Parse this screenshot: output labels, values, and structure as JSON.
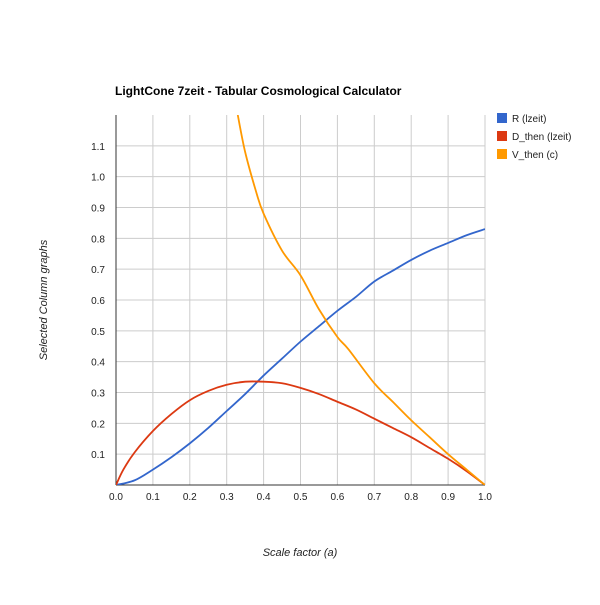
{
  "chart_data": {
    "type": "line",
    "title": "LightCone 7zeit - Tabular Cosmological Calculator",
    "xlabel": "Scale factor (a)",
    "ylabel": "Selected Column graphs",
    "xlim": [
      0.0,
      1.0
    ],
    "ylim": [
      0.0,
      1.2
    ],
    "x_ticks": [
      "0.0",
      "0.1",
      "0.2",
      "0.3",
      "0.4",
      "0.5",
      "0.6",
      "0.7",
      "0.8",
      "0.9",
      "1.0"
    ],
    "y_ticks": [
      "0.1",
      "0.2",
      "0.3",
      "0.4",
      "0.5",
      "0.6",
      "0.7",
      "0.8",
      "0.9",
      "1.0",
      "1.1"
    ],
    "grid": true,
    "legend_position": "right",
    "series": [
      {
        "name": "R (lzeit)",
        "color": "#3366cc",
        "points": [
          [
            0.0,
            0.0
          ],
          [
            0.05,
            0.015
          ],
          [
            0.1,
            0.05
          ],
          [
            0.15,
            0.09
          ],
          [
            0.2,
            0.135
          ],
          [
            0.25,
            0.185
          ],
          [
            0.3,
            0.24
          ],
          [
            0.35,
            0.295
          ],
          [
            0.4,
            0.355
          ],
          [
            0.45,
            0.41
          ],
          [
            0.5,
            0.465
          ],
          [
            0.55,
            0.515
          ],
          [
            0.6,
            0.565
          ],
          [
            0.65,
            0.61
          ],
          [
            0.7,
            0.66
          ],
          [
            0.75,
            0.695
          ],
          [
            0.8,
            0.73
          ],
          [
            0.85,
            0.76
          ],
          [
            0.9,
            0.785
          ],
          [
            0.95,
            0.81
          ],
          [
            1.0,
            0.83
          ]
        ]
      },
      {
        "name": "D_then (lzeit)",
        "color": "#dc3912",
        "points": [
          [
            0.0,
            0.0
          ],
          [
            0.02,
            0.05
          ],
          [
            0.05,
            0.105
          ],
          [
            0.1,
            0.175
          ],
          [
            0.15,
            0.23
          ],
          [
            0.2,
            0.275
          ],
          [
            0.25,
            0.305
          ],
          [
            0.3,
            0.325
          ],
          [
            0.35,
            0.335
          ],
          [
            0.4,
            0.335
          ],
          [
            0.45,
            0.33
          ],
          [
            0.5,
            0.315
          ],
          [
            0.55,
            0.295
          ],
          [
            0.6,
            0.27
          ],
          [
            0.65,
            0.245
          ],
          [
            0.7,
            0.215
          ],
          [
            0.75,
            0.185
          ],
          [
            0.8,
            0.155
          ],
          [
            0.85,
            0.12
          ],
          [
            0.9,
            0.085
          ],
          [
            0.95,
            0.045
          ],
          [
            1.0,
            0.0
          ]
        ]
      },
      {
        "name": "V_then (c)",
        "color": "#ff9900",
        "points": [
          [
            0.33,
            1.2
          ],
          [
            0.35,
            1.08
          ],
          [
            0.38,
            0.95
          ],
          [
            0.4,
            0.88
          ],
          [
            0.45,
            0.76
          ],
          [
            0.5,
            0.68
          ],
          [
            0.55,
            0.57
          ],
          [
            0.6,
            0.48
          ],
          [
            0.63,
            0.44
          ],
          [
            0.7,
            0.33
          ],
          [
            0.75,
            0.27
          ],
          [
            0.8,
            0.21
          ],
          [
            0.85,
            0.155
          ],
          [
            0.9,
            0.1
          ],
          [
            0.95,
            0.05
          ],
          [
            1.0,
            0.0
          ]
        ]
      }
    ]
  }
}
